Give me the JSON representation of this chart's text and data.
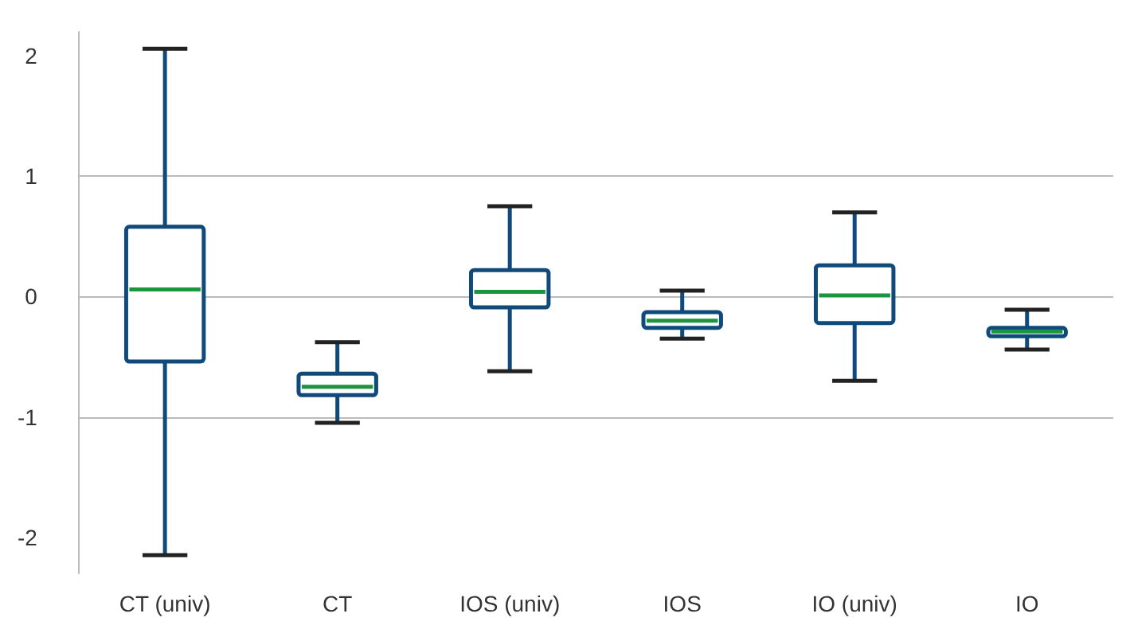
{
  "chart_data": {
    "type": "box",
    "categories": [
      "CT (univ)",
      "CT",
      "IOS (univ)",
      "IOS",
      "IO (univ)",
      "IO"
    ],
    "series": [
      {
        "color": "#0f4a7a",
        "boxes": [
          {
            "low": -2.15,
            "q1": -0.54,
            "median": 0.06,
            "q3": 0.58,
            "high": 2.06
          },
          {
            "low": -1.05,
            "q1": -0.82,
            "median": -0.75,
            "q3": -0.64,
            "high": -0.38
          },
          {
            "low": -0.62,
            "q1": -0.09,
            "median": 0.04,
            "q3": 0.22,
            "high": 0.75
          },
          {
            "low": -0.35,
            "q1": -0.26,
            "median": -0.2,
            "q3": -0.13,
            "high": 0.05
          },
          {
            "low": -0.7,
            "q1": -0.22,
            "median": 0.01,
            "q3": 0.26,
            "high": 0.7
          },
          {
            "low": -0.44,
            "q1": -0.33,
            "median": -0.29,
            "q3": -0.26,
            "high": -0.11
          }
        ]
      }
    ],
    "ylim": [
      -2.3,
      2.2
    ],
    "yticks": [
      -2,
      -1,
      0,
      1,
      2
    ],
    "grid": "y"
  }
}
